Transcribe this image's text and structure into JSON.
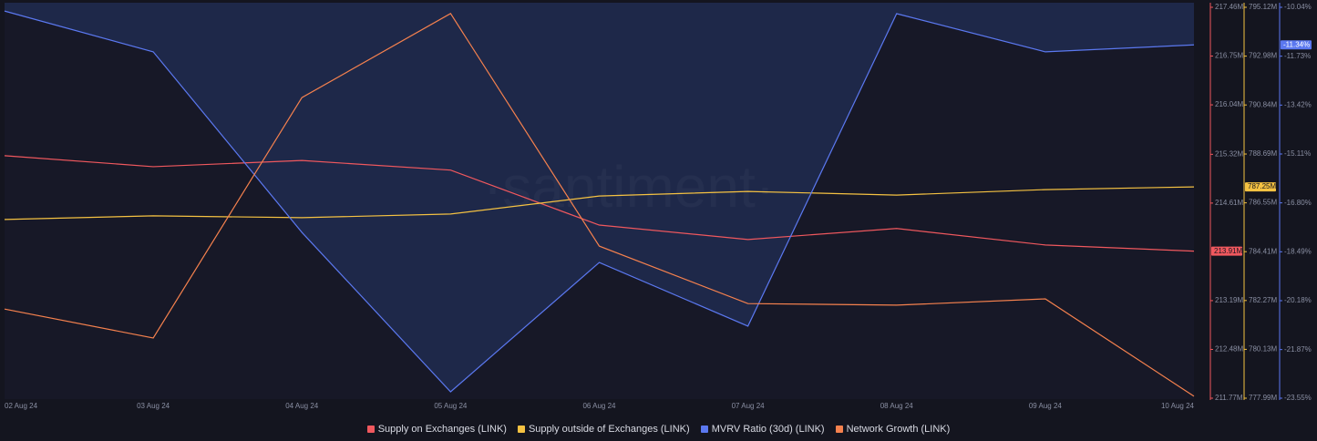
{
  "chart_data": {
    "type": "line",
    "watermark": "·santiment·",
    "categories": [
      "02 Aug 24",
      "03 Aug 24",
      "04 Aug 24",
      "05 Aug 24",
      "06 Aug 24",
      "07 Aug 24",
      "08 Aug 24",
      "09 Aug 24",
      "10 Aug 24"
    ],
    "series": [
      {
        "name": "Supply on Exchanges (LINK)",
        "color": "#f0585e",
        "axis": "y",
        "values": [
          215.3,
          215.14,
          215.23,
          215.09,
          214.29,
          214.08,
          214.24,
          214.0,
          213.91
        ],
        "value_labels": [
          null,
          null,
          null,
          null,
          null,
          null,
          null,
          null,
          "213.91M"
        ]
      },
      {
        "name": "Supply outside of Exchanges (LINK)",
        "color": "#f5c242",
        "axis": "y2",
        "values": [
          785.82,
          785.98,
          785.9,
          786.06,
          786.85,
          787.05,
          786.89,
          787.13,
          787.25
        ],
        "value_labels": [
          null,
          null,
          null,
          null,
          null,
          null,
          null,
          null,
          "787.25M"
        ]
      },
      {
        "name": "MVRV Ratio (30d) (LINK)",
        "color": "#5b78f0",
        "axis": "y3",
        "fill": "#1f2a4e",
        "values": [
          -10.17,
          -11.58,
          -17.82,
          -23.33,
          -18.86,
          -21.06,
          -10.26,
          -11.58,
          -11.34
        ],
        "value_labels": [
          null,
          null,
          null,
          null,
          null,
          null,
          null,
          null,
          "-11.34%"
        ]
      },
      {
        "name": "Network Growth (LINK)",
        "color": "#f5814e",
        "axis": "y4",
        "values": [
          22.8,
          15.4,
          76.9,
          98.4,
          38.9,
          24.2,
          23.8,
          25.4,
          0.5
        ]
      }
    ],
    "ylim": [
      211.77,
      217.46
    ],
    "yticks": [
      {
        "value": 211.77,
        "label": "211.77M"
      },
      {
        "value": 212.48,
        "label": "212.48M"
      },
      {
        "value": 213.19,
        "label": "213.19M"
      },
      {
        "value": 214.61,
        "label": "214.61M"
      },
      {
        "value": 215.32,
        "label": "215.32M"
      },
      {
        "value": 216.04,
        "label": "216.04M"
      },
      {
        "value": 216.75,
        "label": "216.75M"
      },
      {
        "value": 217.46,
        "label": "217.46M"
      }
    ],
    "y2lim": [
      777.99,
      795.12
    ],
    "y2ticks": [
      {
        "value": 777.99,
        "label": "777.99M"
      },
      {
        "value": 780.13,
        "label": "780.13M"
      },
      {
        "value": 782.27,
        "label": "782.27M"
      },
      {
        "value": 784.41,
        "label": "784.41M"
      },
      {
        "value": 786.55,
        "label": "786.55M"
      },
      {
        "value": 788.69,
        "label": "788.69M"
      },
      {
        "value": 790.84,
        "label": "790.84M"
      },
      {
        "value": 792.98,
        "label": "792.98M"
      },
      {
        "value": 795.12,
        "label": "795.12M"
      }
    ],
    "y3lim": [
      -23.55,
      -10.04
    ],
    "y3ticks": [
      {
        "value": -23.55,
        "label": "-23.55%"
      },
      {
        "value": -21.87,
        "label": "-21.87%"
      },
      {
        "value": -20.18,
        "label": "-20.18%"
      },
      {
        "value": -18.49,
        "label": "-18.49%"
      },
      {
        "value": -16.8,
        "label": "-16.80%"
      },
      {
        "value": -15.11,
        "label": "-15.11%"
      },
      {
        "value": -13.42,
        "label": "-13.42%"
      },
      {
        "value": -11.73,
        "label": "-11.73%"
      },
      {
        "value": -10.04,
        "label": "-10.04%"
      }
    ],
    "y4lim": [
      0,
      100
    ],
    "grid": false
  }
}
